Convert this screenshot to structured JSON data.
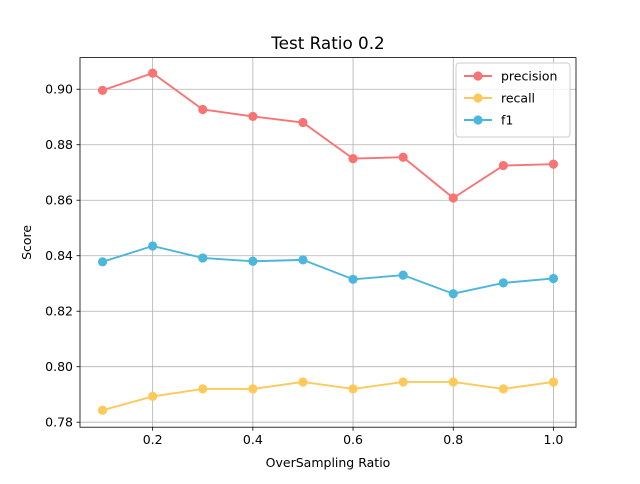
{
  "chart_data": {
    "type": "line",
    "title": "Test Ratio 0.2",
    "xlabel": "OverSampling Ratio",
    "ylabel": "Score",
    "x": [
      0.1,
      0.2,
      0.3,
      0.4,
      0.5,
      0.6,
      0.7,
      0.8,
      0.9,
      1.0
    ],
    "xlim": [
      0.055,
      1.045
    ],
    "ylim": [
      0.7782,
      0.9114
    ],
    "xticks": [
      0.2,
      0.4,
      0.6,
      0.8,
      1.0
    ],
    "xtick_labels": [
      "0.2",
      "0.4",
      "0.6",
      "0.8",
      "1.0"
    ],
    "yticks": [
      0.78,
      0.8,
      0.82,
      0.84,
      0.86,
      0.88,
      0.9
    ],
    "ytick_labels": [
      "0.78",
      "0.80",
      "0.82",
      "0.84",
      "0.86",
      "0.88",
      "0.90"
    ],
    "grid": true,
    "legend_position": "top-right",
    "series": [
      {
        "name": "precision",
        "color": "#f87474",
        "values": [
          0.8996,
          0.9058,
          0.8927,
          0.8902,
          0.888,
          0.875,
          0.8755,
          0.8608,
          0.8725,
          0.873
        ]
      },
      {
        "name": "recall",
        "color": "#fdc95b",
        "values": [
          0.7843,
          0.7893,
          0.792,
          0.792,
          0.7945,
          0.792,
          0.7945,
          0.7945,
          0.792,
          0.7945
        ]
      },
      {
        "name": "f1",
        "color": "#4cb6dc",
        "values": [
          0.8378,
          0.8435,
          0.8392,
          0.838,
          0.8385,
          0.8315,
          0.833,
          0.8263,
          0.8302,
          0.8318
        ]
      }
    ]
  }
}
